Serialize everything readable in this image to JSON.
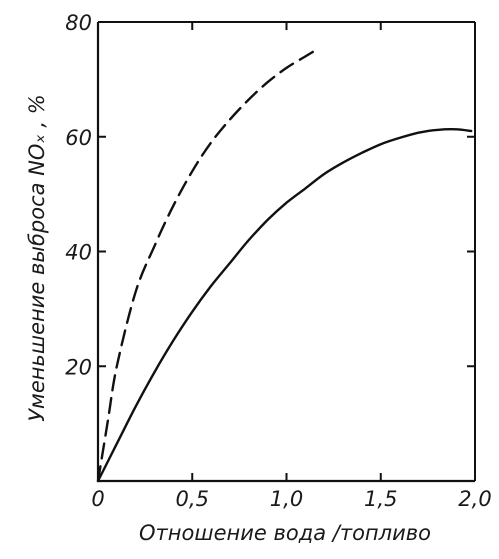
{
  "chart_data": {
    "type": "line",
    "xlabel": "Отношение вода /топливо",
    "ylabel": "Уменьшение выброса NOₓ , %",
    "xlim": [
      0,
      2.0
    ],
    "ylim": [
      0,
      80
    ],
    "x_ticks": [
      "0",
      "0,5",
      "1,0",
      "1,5",
      "2,0"
    ],
    "y_ticks": [
      "20",
      "40",
      "60",
      "80"
    ],
    "grid": false,
    "series": [
      {
        "style": "dashed",
        "x": [
          0,
          0.05,
          0.1,
          0.2,
          0.3,
          0.4,
          0.5,
          0.6,
          0.7,
          0.8,
          0.9,
          1.0,
          1.1,
          1.15
        ],
        "y": [
          0,
          10,
          20,
          33,
          41,
          48,
          54,
          59,
          63,
          66.5,
          69.5,
          72,
          74,
          75
        ]
      },
      {
        "style": "solid",
        "x": [
          0,
          0.1,
          0.2,
          0.3,
          0.4,
          0.5,
          0.6,
          0.7,
          0.8,
          0.9,
          1.0,
          1.1,
          1.2,
          1.3,
          1.4,
          1.5,
          1.6,
          1.7,
          1.8,
          1.9,
          1.98
        ],
        "y": [
          0,
          6.5,
          13,
          19,
          24.5,
          29.5,
          34,
          38,
          42,
          45.5,
          48.5,
          51,
          53.5,
          55.5,
          57.2,
          58.7,
          59.8,
          60.7,
          61.2,
          61.3,
          61
        ]
      }
    ]
  }
}
